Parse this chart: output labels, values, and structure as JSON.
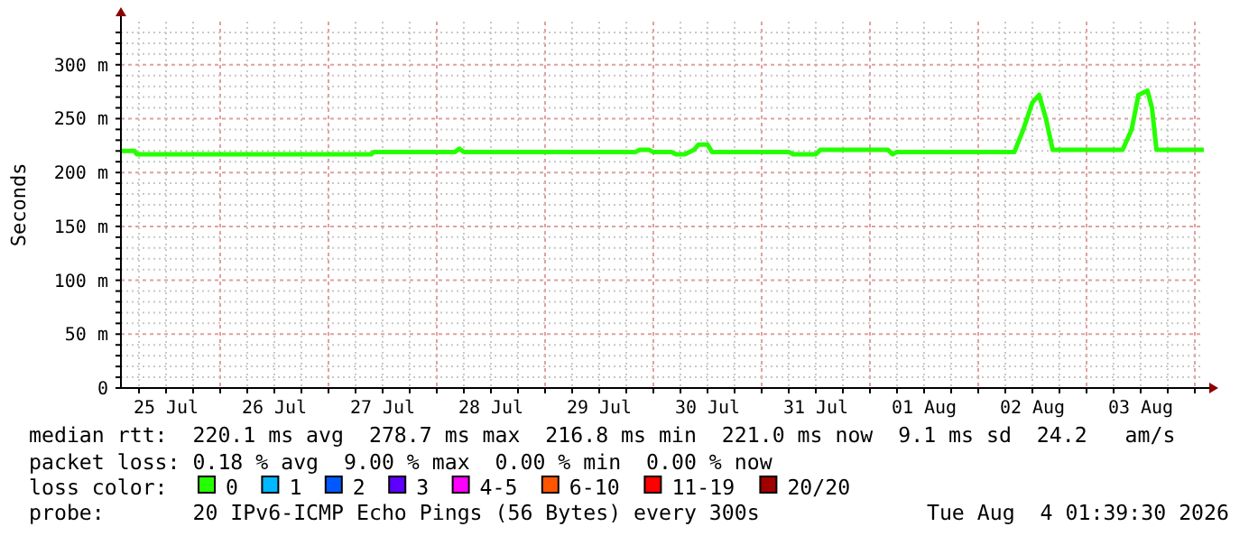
{
  "chart_data": {
    "type": "line",
    "ylabel": "Seconds",
    "legend_title": "loss color:",
    "legend": "bottom",
    "grid": true,
    "marker": "none",
    "line_style": "solid",
    "xlim": [
      "2026-07-25T02:00",
      "2026-08-04T02:00"
    ],
    "xticks": [
      {
        "value": "2026-07-25T06:00",
        "label": null
      },
      {
        "value": "2026-07-25T12:00",
        "label": "25 Jul"
      },
      {
        "value": "2026-07-25T18:00",
        "label": null
      },
      {
        "value": "2026-07-26T00:00",
        "label": null
      },
      {
        "value": "2026-07-26T06:00",
        "label": null
      },
      {
        "value": "2026-07-26T12:00",
        "label": "26 Jul"
      },
      {
        "value": "2026-07-26T18:00",
        "label": null
      },
      {
        "value": "2026-07-27T00:00",
        "label": null
      },
      {
        "value": "2026-07-27T06:00",
        "label": null
      },
      {
        "value": "2026-07-27T12:00",
        "label": "27 Jul"
      },
      {
        "value": "2026-07-27T18:00",
        "label": null
      },
      {
        "value": "2026-07-28T00:00",
        "label": null
      },
      {
        "value": "2026-07-28T06:00",
        "label": null
      },
      {
        "value": "2026-07-28T12:00",
        "label": "28 Jul"
      },
      {
        "value": "2026-07-28T18:00",
        "label": null
      },
      {
        "value": "2026-07-29T00:00",
        "label": null
      },
      {
        "value": "2026-07-29T06:00",
        "label": null
      },
      {
        "value": "2026-07-29T12:00",
        "label": "29 Jul"
      },
      {
        "value": "2026-07-29T18:00",
        "label": null
      },
      {
        "value": "2026-07-30T00:00",
        "label": null
      },
      {
        "value": "2026-07-30T06:00",
        "label": null
      },
      {
        "value": "2026-07-30T12:00",
        "label": "30 Jul"
      },
      {
        "value": "2026-07-30T18:00",
        "label": null
      },
      {
        "value": "2026-07-31T00:00",
        "label": null
      },
      {
        "value": "2026-07-31T06:00",
        "label": null
      },
      {
        "value": "2026-07-31T12:00",
        "label": "31 Jul"
      },
      {
        "value": "2026-07-31T18:00",
        "label": null
      },
      {
        "value": "2026-08-01T00:00",
        "label": null
      },
      {
        "value": "2026-08-01T06:00",
        "label": null
      },
      {
        "value": "2026-08-01T12:00",
        "label": "01 Aug"
      },
      {
        "value": "2026-08-01T18:00",
        "label": null
      },
      {
        "value": "2026-08-02T00:00",
        "label": null
      },
      {
        "value": "2026-08-02T06:00",
        "label": null
      },
      {
        "value": "2026-08-02T12:00",
        "label": "02 Aug"
      },
      {
        "value": "2026-08-02T18:00",
        "label": null
      },
      {
        "value": "2026-08-03T00:00",
        "label": null
      },
      {
        "value": "2026-08-03T06:00",
        "label": null
      },
      {
        "value": "2026-08-03T12:00",
        "label": "03 Aug"
      },
      {
        "value": "2026-08-03T18:00",
        "label": null
      },
      {
        "value": "2026-08-04T00:00",
        "label": null
      }
    ],
    "ylim": [
      0,
      340
    ],
    "yticks": [
      0,
      {
        "value": 10,
        "label": null
      },
      {
        "value": 20,
        "label": null
      },
      {
        "value": 30,
        "label": null
      },
      {
        "value": 40,
        "label": null
      },
      {
        "value": 50,
        "label": "50 m"
      },
      {
        "value": 60,
        "label": null
      },
      {
        "value": 70,
        "label": null
      },
      {
        "value": 80,
        "label": null
      },
      {
        "value": 90,
        "label": null
      },
      {
        "value": 100,
        "label": "100 m"
      },
      {
        "value": 110,
        "label": null
      },
      {
        "value": 120,
        "label": null
      },
      {
        "value": 130,
        "label": null
      },
      {
        "value": 140,
        "label": null
      },
      {
        "value": 150,
        "label": "150 m"
      },
      {
        "value": 160,
        "label": null
      },
      {
        "value": 170,
        "label": null
      },
      {
        "value": 180,
        "label": null
      },
      {
        "value": 190,
        "label": null
      },
      {
        "value": 200,
        "label": "200 m"
      },
      {
        "value": 210,
        "label": null
      },
      {
        "value": 220,
        "label": null
      },
      {
        "value": 230,
        "label": null
      },
      {
        "value": 240,
        "label": null
      },
      {
        "value": 250,
        "label": "250 m"
      },
      {
        "value": 260,
        "label": null
      },
      {
        "value": 270,
        "label": null
      },
      {
        "value": 280,
        "label": null
      },
      {
        "value": 290,
        "label": null
      },
      {
        "value": 300,
        "label": "300 m"
      },
      {
        "value": 310,
        "label": null
      },
      {
        "value": 320,
        "label": null
      },
      {
        "value": 330,
        "label": null
      }
    ],
    "series": [
      {
        "name": "0",
        "color": "#26ff00",
        "x": [
          "2026-07-25T02:00",
          "2026-07-25T05:00",
          "2026-07-25T05:30",
          "2026-07-27T09:30",
          "2026-07-27T10:00",
          "2026-07-28T04:00",
          "2026-07-28T05:00",
          "2026-07-28T06:00",
          "2026-07-29T20:00",
          "2026-07-29T21:00",
          "2026-07-29T23:00",
          "2026-07-30T00:00",
          "2026-07-30T04:00",
          "2026-07-30T05:00",
          "2026-07-30T07:00",
          "2026-07-30T09:00",
          "2026-07-30T10:00",
          "2026-07-30T12:00",
          "2026-07-30T13:00",
          "2026-07-31T06:00",
          "2026-07-31T07:00",
          "2026-07-31T12:00",
          "2026-07-31T13:00",
          "2026-07-31T14:00",
          "2026-08-01T04:00",
          "2026-08-01T05:00",
          "2026-08-01T06:00",
          "2026-08-02T08:00",
          "2026-08-02T10:00",
          "2026-08-02T12:00",
          "2026-08-02T13:30",
          "2026-08-02T15:00",
          "2026-08-02T16:30",
          "2026-08-03T08:00",
          "2026-08-03T10:00",
          "2026-08-03T11:30",
          "2026-08-03T13:30",
          "2026-08-03T14:30",
          "2026-08-03T15:30",
          "2026-08-04T02:00"
        ],
        "values": [
          220,
          220,
          217,
          217,
          219,
          219,
          222,
          219,
          219,
          221,
          221,
          219,
          219,
          217,
          217,
          221,
          226,
          226,
          219,
          219,
          217,
          217,
          221,
          221,
          221,
          217,
          219,
          219,
          240,
          265,
          272,
          250,
          221,
          221,
          240,
          272,
          276,
          260,
          221,
          221
        ]
      },
      {
        "name": "1",
        "color": "#00b8ff"
      },
      {
        "name": "2",
        "color": "#0059ff"
      },
      {
        "name": "3",
        "color": "#5e00ff"
      },
      {
        "name": "4-5",
        "color": "#ff00ff"
      },
      {
        "name": "6-10",
        "color": "#ff5500"
      },
      {
        "name": "11-19",
        "color": "#ff0000"
      },
      {
        "name": "20/20",
        "color": "#a10000"
      }
    ],
    "annotations": [
      "median rtt:  220.1 ms avg  278.7 ms max  216.8 ms min  221.0 ms now  9.1 ms sd  24.2   am/s",
      "packet loss: 0.18 % avg  9.00 % max  0.00 % min  0.00 % now",
      "probe:       20 IPv6-ICMP Echo Pings (56 Bytes) every 300s",
      "Tue Aug  4 01:39:30 2026"
    ]
  }
}
